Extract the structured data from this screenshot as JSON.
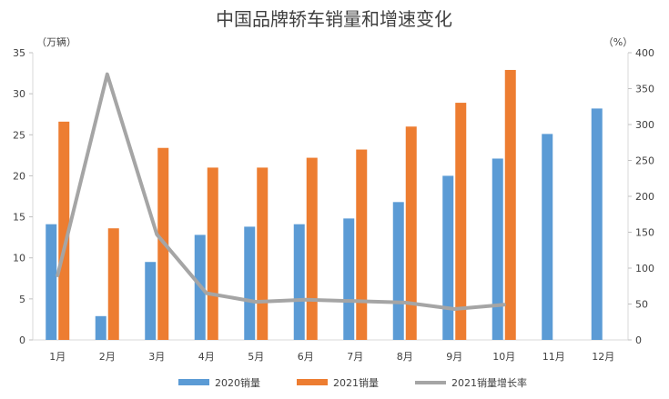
{
  "chart_data": {
    "type": "bar",
    "title": "中国品牌轿车销量和增速变化",
    "left_unit": "（万辆）",
    "right_unit": "（%）",
    "categories": [
      "1月",
      "2月",
      "3月",
      "4月",
      "5月",
      "6月",
      "7月",
      "8月",
      "9月",
      "10月",
      "11月",
      "12月"
    ],
    "y_left_range": [
      0,
      35
    ],
    "y_left_ticks": [
      "0",
      "5",
      "10",
      "15",
      "20",
      "25",
      "30",
      "35"
    ],
    "y_right_range": [
      0,
      400
    ],
    "y_right_ticks": [
      "0",
      "50",
      "100",
      "150",
      "200",
      "250",
      "300",
      "350",
      "400"
    ],
    "series": [
      {
        "name": "2020销量",
        "kind": "bar",
        "axis": "left",
        "color": "#5B9BD5",
        "values": [
          14.1,
          2.9,
          9.5,
          12.8,
          13.8,
          14.1,
          14.8,
          16.8,
          20.0,
          22.1,
          25.1,
          28.2
        ]
      },
      {
        "name": "2021销量",
        "kind": "bar",
        "axis": "left",
        "color": "#ED7D31",
        "values": [
          26.6,
          13.6,
          23.4,
          21.0,
          21.0,
          22.2,
          23.2,
          26.0,
          28.9,
          32.9,
          null,
          null
        ]
      },
      {
        "name": "2021销量增长率",
        "kind": "line",
        "axis": "right",
        "color": "#A5A5A5",
        "values": [
          90,
          370,
          147,
          65,
          53,
          56,
          54,
          52,
          43,
          49,
          null,
          null
        ]
      }
    ],
    "grid": false,
    "legend_position": "bottom"
  }
}
